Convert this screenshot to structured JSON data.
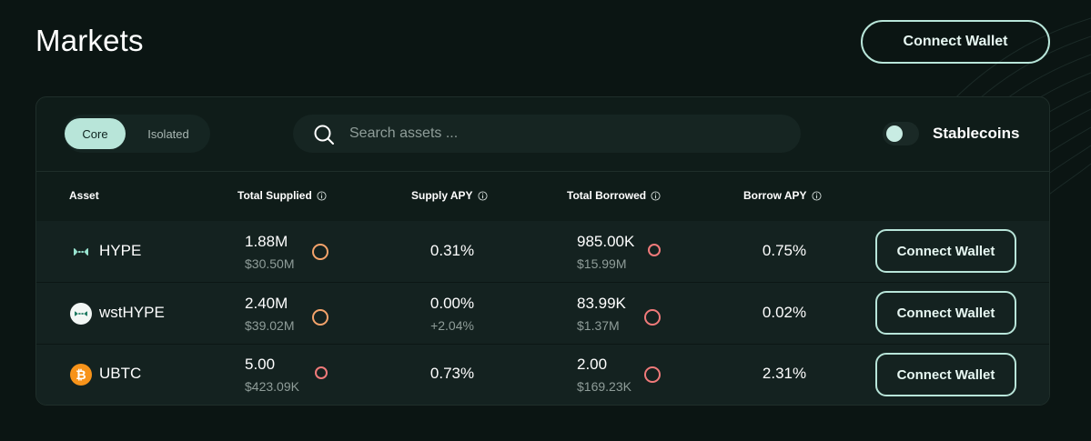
{
  "header": {
    "title": "Markets",
    "connect_label": "Connect Wallet"
  },
  "filters": {
    "tabs": [
      "Core",
      "Isolated"
    ],
    "active_tab": "Core",
    "search_placeholder": "Search assets ...",
    "toggle_label": "Stablecoins",
    "toggle_on": false
  },
  "table": {
    "columns": [
      "Asset",
      "Total Supplied",
      "Supply APY",
      "Total Borrowed",
      "Borrow APY"
    ],
    "rows": [
      {
        "asset": "HYPE",
        "icon": "hype-icon",
        "supplied": "1.88M",
        "supplied_usd": "$30.50M",
        "supply_apy": "0.31%",
        "supply_apy_sub": "",
        "borrowed": "985.00K",
        "borrowed_usd": "$15.99M",
        "borrow_apy": "0.75%",
        "action": "Connect Wallet"
      },
      {
        "asset": "wstHYPE",
        "icon": "wsthype-icon",
        "supplied": "2.40M",
        "supplied_usd": "$39.02M",
        "supply_apy": "0.00%",
        "supply_apy_sub": "+2.04%",
        "borrowed": "83.99K",
        "borrowed_usd": "$1.37M",
        "borrow_apy": "0.02%",
        "action": "Connect Wallet"
      },
      {
        "asset": "UBTC",
        "icon": "bitcoin-icon",
        "supplied": "5.00",
        "supplied_usd": "$423.09K",
        "supply_apy": "0.73%",
        "supply_apy_sub": "",
        "borrowed": "2.00",
        "borrowed_usd": "$169.23K",
        "borrow_apy": "2.31%",
        "action": "Connect Wallet"
      }
    ]
  },
  "colors": {
    "background": "#0b1513",
    "accent": "#b8e5d9",
    "supply_ring": "#f4a36b",
    "borrow_ring": "#f07a7a"
  }
}
